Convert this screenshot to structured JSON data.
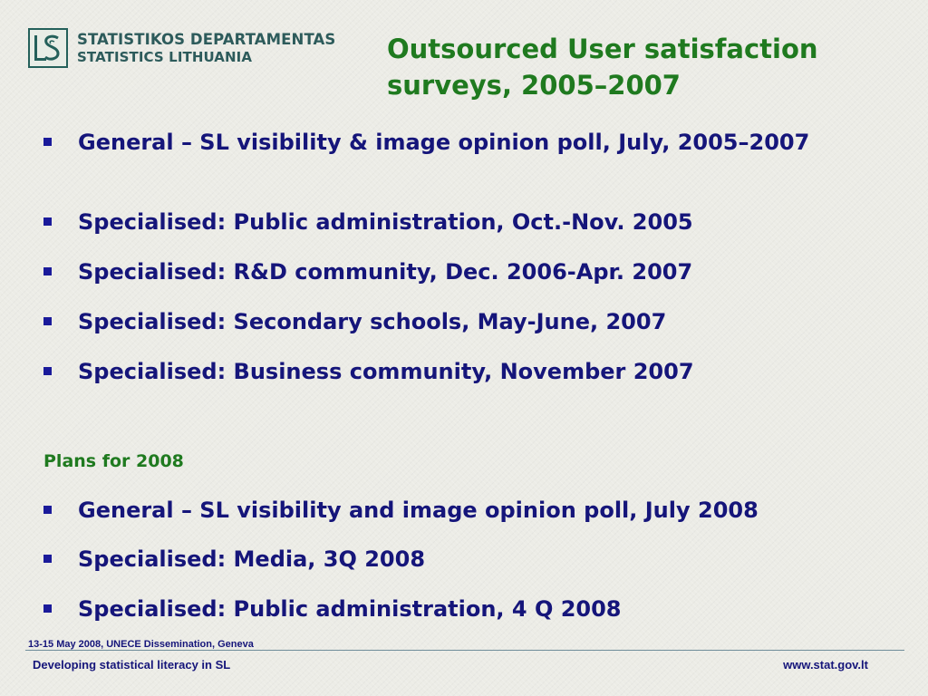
{
  "header": {
    "logo_name_lt": "STATISTIKOS DEPARTAMENTAS",
    "logo_name_en": "STATISTICS LITHUANIA",
    "title_line_1": "Outsourced User satisfaction",
    "title_line_2": "surveys, 2005–2007"
  },
  "surveys": [
    {
      "text": "General – SL visibility & image opinion poll, July, 2005–2007"
    },
    {
      "text": "Specialised: Public administration, Oct.-Nov. 2005"
    },
    {
      "text": "Specialised: R&D community, Dec. 2006-Apr. 2007"
    },
    {
      "text": "Specialised: Secondary schools, May-June, 2007"
    },
    {
      "text": "Specialised: Business community, November 2007"
    }
  ],
  "plans": {
    "heading": "Plans for 2008",
    "items": [
      {
        "text": "General – SL visibility and image opinion poll, July 2008"
      },
      {
        "text": "Specialised: Media, 3Q 2008"
      },
      {
        "text": "Specialised: Public administration, 4 Q 2008"
      }
    ]
  },
  "footer": {
    "date_event": "13-15 May 2008, UNECE Dissemination, Geneva",
    "left": "Developing statistical literacy in SL",
    "right": "www.stat.gov.lt"
  },
  "colors": {
    "title_green": "#1f7a1f",
    "text_navy": "#15157a",
    "logo_teal": "#2d5b5b"
  },
  "icons": {
    "logo": "statistics-lithuania-ls-logo",
    "bullet": "square-bullet"
  }
}
